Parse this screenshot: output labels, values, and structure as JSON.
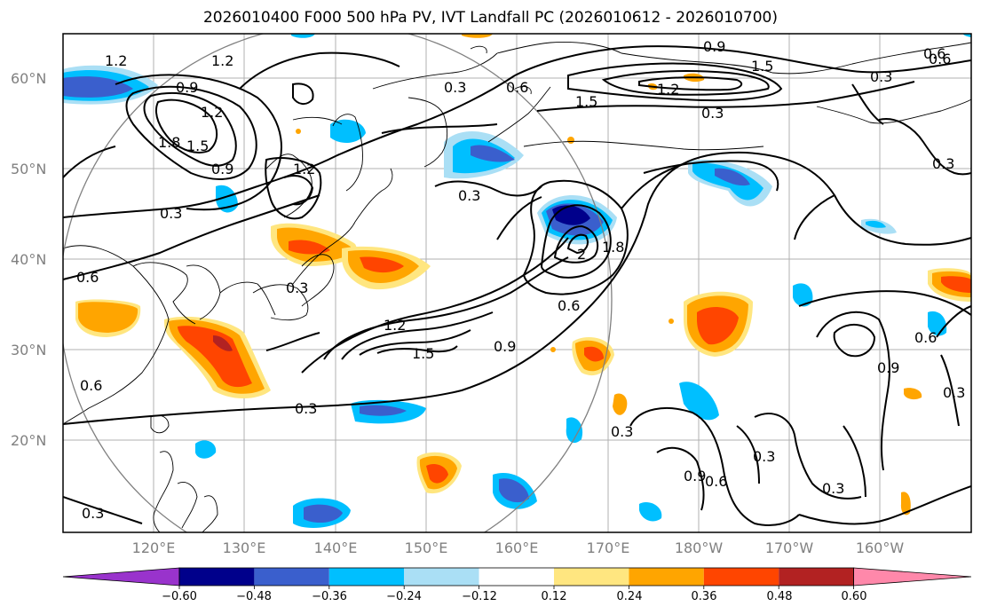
{
  "title": "2026010400 F000 500 hPa PV, IVT Landfall PC (2026010612 - 2026010700)",
  "lat_labels": [
    "60°N",
    "50°N",
    "40°N",
    "30°N",
    "20°N"
  ],
  "lon_labels": [
    "120°E",
    "130°E",
    "140°E",
    "150°E",
    "160°E",
    "170°E",
    "180°W",
    "170°W",
    "160°W"
  ],
  "colorbar": {
    "ticks": [
      "−0.60",
      "−0.48",
      "−0.36",
      "−0.24",
      "−0.12",
      "0.12",
      "0.24",
      "0.36",
      "0.48",
      "0.60"
    ],
    "colors": [
      "#9933cc",
      "#00008b",
      "#3a5fcd",
      "#00bfff",
      "#aadff5",
      "#ffffff",
      "#ffe680",
      "#ffa500",
      "#ff4500",
      "#b22222",
      "#ff88aa"
    ]
  },
  "contour_labels": {
    "l1": "1.2",
    "l2": "1.2",
    "l3": "0.9",
    "l4": "1.2",
    "l5": "1.8",
    "l6": "1.5",
    "l7": "0.9",
    "l8": "1.2",
    "l9": "0.3",
    "l10": "0.6",
    "l11": "0.3",
    "l12": "0.3",
    "l13": "0.3",
    "l14": "0.6",
    "l15": "0.9",
    "l16": "1.5",
    "l17": "1.5",
    "l18": "1.2",
    "l19": "0.3",
    "l20": "0.6",
    "l21": "0.3",
    "l22": "0.3",
    "l23": "1.8",
    "l24": "2",
    "l25": "0.6",
    "l26": "0.9",
    "l27": "1.2",
    "l28": "1.5",
    "l29": "0.6",
    "l30": "0.3",
    "l31": "0.6",
    "l32": "0.3",
    "l33": "0.3",
    "l34": "0.9",
    "l35": "0.6",
    "l36": "0.3",
    "l37": "0.3",
    "l38": "0.9",
    "l39": "0.6",
    "l40": "0.3"
  }
}
